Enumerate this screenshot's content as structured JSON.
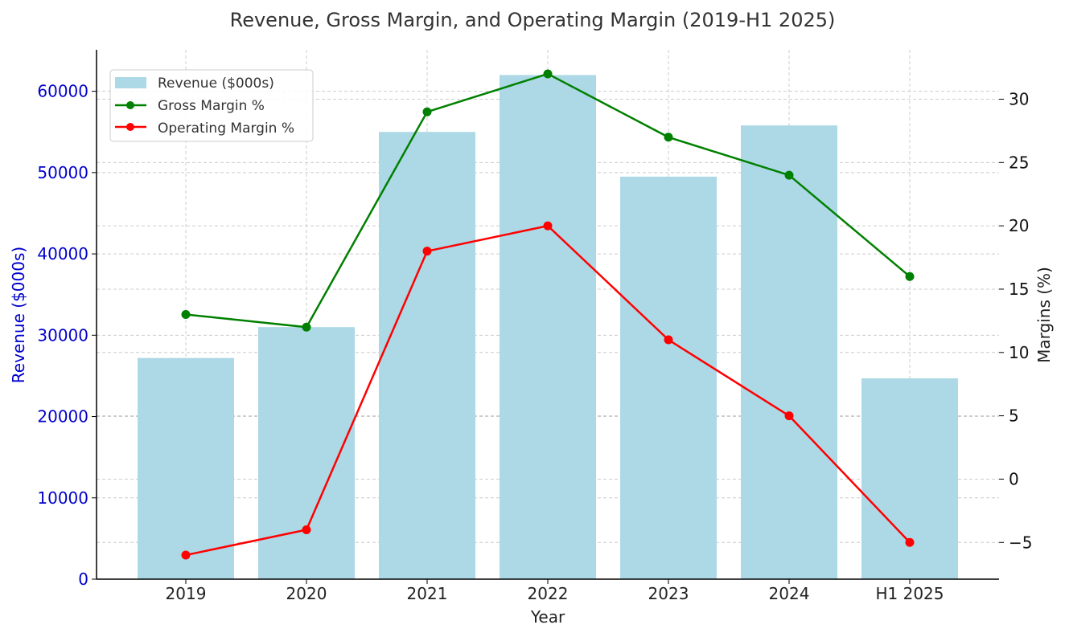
{
  "chart_data": {
    "type": "bar+line",
    "title": "Revenue, Gross Margin, and Operating Margin (2019-H1 2025)",
    "xlabel": "Year",
    "ylabel_left": "Revenue ($000s)",
    "ylabel_right": "Margins (%)",
    "categories": [
      "2019",
      "2020",
      "2021",
      "2022",
      "2023",
      "2024",
      "H1 2025"
    ],
    "ylim_left": [
      0,
      65100
    ],
    "ylim_right": [
      -7.9,
      33.9
    ],
    "yticks_left": [
      0,
      10000,
      20000,
      30000,
      40000,
      50000,
      60000
    ],
    "yticks_right": [
      -5,
      0,
      5,
      10,
      15,
      20,
      25,
      30
    ],
    "ytick_labels_right": [
      "−5",
      "0",
      "5",
      "10",
      "15",
      "20",
      "25",
      "30"
    ],
    "grid": true,
    "legend_position": "top-left",
    "series": [
      {
        "name": "Revenue ($000s)",
        "kind": "bar",
        "axis": "left",
        "color": "#add8e6",
        "values": [
          27200,
          31000,
          55000,
          62000,
          49500,
          55800,
          24700
        ]
      },
      {
        "name": "Gross Margin %",
        "kind": "line",
        "axis": "right",
        "color": "#008000",
        "values": [
          13,
          12,
          29,
          32,
          27,
          24,
          16
        ]
      },
      {
        "name": "Operating Margin %",
        "kind": "line",
        "axis": "right",
        "color": "#ff0000",
        "values": [
          -6,
          -4,
          18,
          20,
          11,
          5,
          -5
        ]
      }
    ],
    "left_axis_color": "#0000cd"
  }
}
